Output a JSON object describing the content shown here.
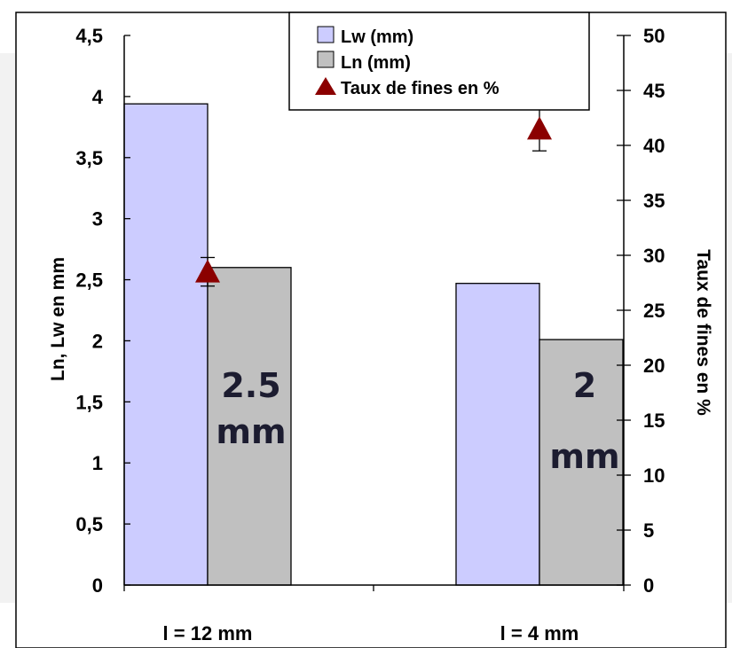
{
  "chart_data": {
    "type": "bar",
    "categories": [
      "l = 12 mm",
      "l = 4 mm"
    ],
    "series": [
      {
        "name": "Lw (mm)",
        "axis": "left",
        "values": [
          3.94,
          2.47
        ],
        "color": "#ccccff"
      },
      {
        "name": "Ln (mm)",
        "axis": "left",
        "values": [
          2.6,
          2.01
        ],
        "color": "#c0c0c0"
      },
      {
        "name": "Taux de fines en %",
        "axis": "right",
        "type": "scatter",
        "marker": "triangle",
        "values": [
          28.5,
          41.5
        ],
        "error_low": [
          27.2,
          39.5
        ],
        "error_high": [
          29.8,
          43.5
        ],
        "color": "#8b0000"
      }
    ],
    "ylabel": "Ln, Lw en mm",
    "ylim": [
      0,
      4.5
    ],
    "yticks": [
      "0",
      "0,5",
      "1",
      "1,5",
      "2",
      "2,5",
      "3",
      "3,5",
      "4",
      "4,5"
    ],
    "y2label": "Taux de fines en %",
    "y2lim": [
      0,
      50
    ],
    "y2ticks": [
      "0",
      "5",
      "10",
      "15",
      "20",
      "25",
      "30",
      "35",
      "40",
      "45",
      "50"
    ],
    "annotations": [
      {
        "line1": "2.5",
        "line2": "mm"
      },
      {
        "line1": "2",
        "line2": "mm"
      }
    ],
    "legend_position": "top-right",
    "grid": false
  }
}
